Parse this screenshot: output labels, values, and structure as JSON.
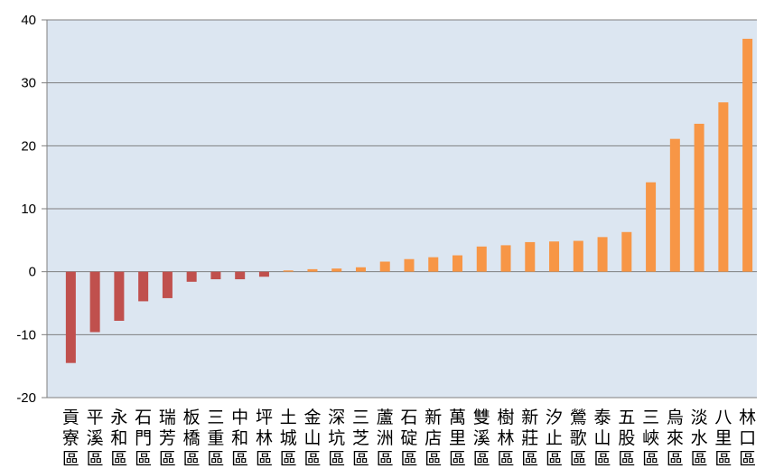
{
  "chart_data": {
    "type": "bar",
    "categories": [
      "貢寮區",
      "平溪區",
      "永和區",
      "石門區",
      "瑞芳區",
      "板橋區",
      "三重區",
      "中和區",
      "坪林區",
      "土城區",
      "金山區",
      "深坑區",
      "三芝區",
      "蘆洲區",
      "石碇區",
      "新店區",
      "萬里區",
      "雙溪區",
      "樹林區",
      "新莊區",
      "汐止區",
      "鶯歌區",
      "泰山區",
      "五股區",
      "三峽區",
      "烏來區",
      "淡水區",
      "八里區",
      "林口區"
    ],
    "values": [
      -14.5,
      -9.6,
      -7.8,
      -4.7,
      -4.2,
      -1.6,
      -1.2,
      -1.2,
      -0.8,
      0.2,
      0.4,
      0.5,
      0.7,
      1.6,
      2.0,
      2.3,
      2.6,
      4.0,
      4.2,
      4.7,
      4.8,
      4.9,
      5.5,
      6.3,
      14.2,
      21.1,
      23.5,
      26.9,
      37.0
    ],
    "ylim": [
      -20,
      40
    ],
    "yticks": [
      -20,
      -10,
      0,
      10,
      20,
      30,
      40
    ],
    "grid": true,
    "colors": {
      "negative": "#c0504d",
      "positive": "#f79646",
      "plot_background": "#dce6f1",
      "gridline": "#7f7f7f",
      "axis": "#7f7f7f"
    }
  }
}
